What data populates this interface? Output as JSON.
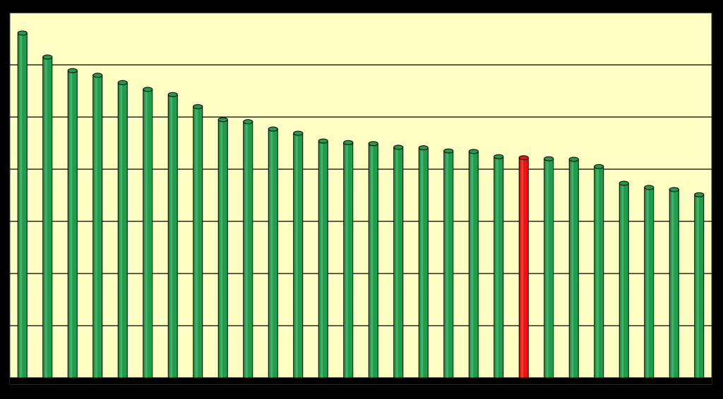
{
  "chart_data": {
    "type": "bar",
    "categories": [
      null,
      null,
      null,
      null,
      null,
      null,
      null,
      null,
      null,
      null,
      null,
      null,
      null,
      null,
      null,
      null,
      null,
      null,
      null,
      null,
      null,
      null,
      null,
      null,
      null,
      null,
      null,
      null
    ],
    "values": [
      6.61,
      6.15,
      5.89,
      5.8,
      5.66,
      5.53,
      5.43,
      5.2,
      4.95,
      4.91,
      4.77,
      4.69,
      4.54,
      4.51,
      4.49,
      4.42,
      4.41,
      4.35,
      4.34,
      4.24,
      4.22,
      4.2,
      4.19,
      4.05,
      3.73,
      3.65,
      3.61,
      3.51
    ],
    "colors": [
      "#1e9e4a",
      "#1e9e4a",
      "#1e9e4a",
      "#1e9e4a",
      "#1e9e4a",
      "#1e9e4a",
      "#1e9e4a",
      "#1e9e4a",
      "#1e9e4a",
      "#1e9e4a",
      "#1e9e4a",
      "#1e9e4a",
      "#1e9e4a",
      "#1e9e4a",
      "#1e9e4a",
      "#1e9e4a",
      "#1e9e4a",
      "#1e9e4a",
      "#1e9e4a",
      "#1e9e4a",
      "#ee1111",
      "#1e9e4a",
      "#1e9e4a",
      "#1e9e4a",
      "#1e9e4a",
      "#1e9e4a",
      "#1e9e4a",
      "#1e9e4a"
    ],
    "ylim": [
      0,
      7
    ],
    "yticks": [
      0,
      1,
      2,
      3,
      4,
      5,
      6,
      7
    ],
    "grid": true
  }
}
